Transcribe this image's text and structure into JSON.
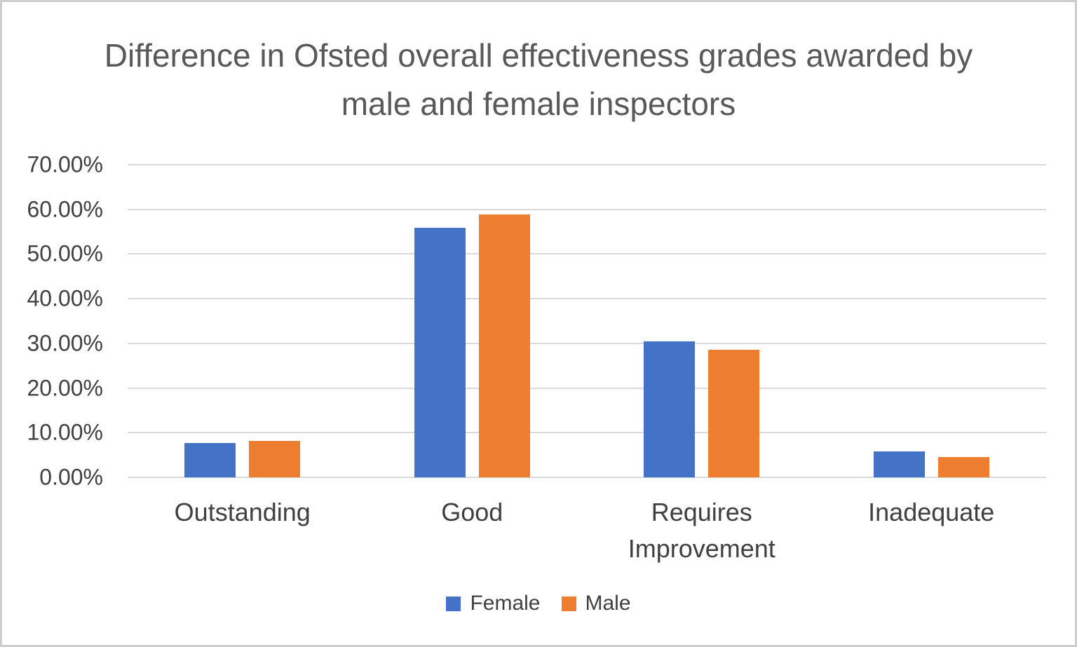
{
  "chart_data": {
    "type": "bar",
    "title": "Difference in Ofsted overall effectiveness grades awarded by male and female inspectors",
    "categories": [
      "Outstanding",
      "Good",
      "Requires Improvement",
      "Inadequate"
    ],
    "series": [
      {
        "name": "Female",
        "color": "#4472C4",
        "values": [
          7.7,
          55.9,
          30.5,
          5.8
        ]
      },
      {
        "name": "Male",
        "color": "#ED7D31",
        "values": [
          8.1,
          58.8,
          28.6,
          4.5
        ]
      }
    ],
    "values_unit": "percent",
    "ylim": [
      0,
      70
    ],
    "ytick_step": 10,
    "ytick_labels": [
      "0.00%",
      "10.00%",
      "20.00%",
      "30.00%",
      "40.00%",
      "50.00%",
      "60.00%",
      "70.00%"
    ],
    "grid": true,
    "legend_position": "bottom",
    "colors": {
      "female_series": "#4472C4",
      "male_series": "#ED7D31",
      "gridline": "#D9D9D9",
      "title_text": "#595959",
      "axis_text": "#404040",
      "frame_border": "#CDCDCD",
      "background": "#FFFFFF"
    }
  }
}
